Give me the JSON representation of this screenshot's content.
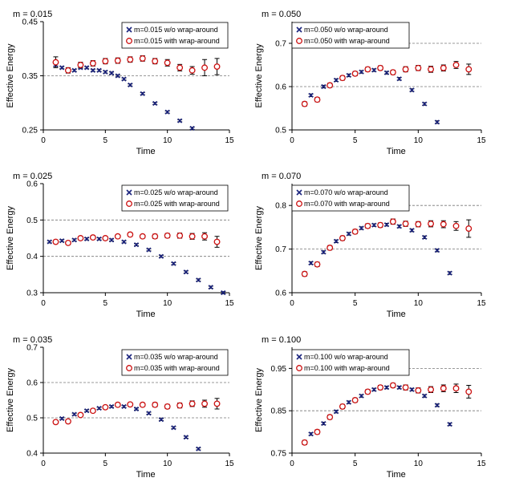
{
  "colors": {
    "without_wrap": "#1a237e",
    "with_wrap": "#cc1111",
    "error_bar": "#000000",
    "reference_line": "#777777",
    "axis": "#000000"
  },
  "chart_data": [
    {
      "type": "scatter",
      "title": "m = 0.015",
      "xlabel": "Time",
      "ylabel": "Effective Energy",
      "xlim": [
        0,
        15
      ],
      "ylim": [
        0.25,
        0.45
      ],
      "xticks": [
        "0",
        "5",
        "10",
        "15"
      ],
      "yticks": [
        "0.25",
        "0.35",
        "0.45"
      ],
      "reference_lines": [
        0.35
      ],
      "legend_position": "top-right",
      "series": [
        {
          "name": "m=0.015 w/o wrap-around",
          "marker": "x",
          "x": [
            1,
            1.5,
            2,
            2.5,
            3,
            3.5,
            4,
            4.5,
            5,
            5.5,
            6,
            6.5,
            7,
            8,
            9,
            10,
            11,
            12
          ],
          "y": [
            0.37,
            0.365,
            0.36,
            0.36,
            0.365,
            0.365,
            0.36,
            0.36,
            0.357,
            0.355,
            0.35,
            0.344,
            0.333,
            0.317,
            0.299,
            0.283,
            0.267,
            0.253
          ],
          "err": [
            0.002,
            0.002,
            0.002,
            0.002,
            0.002,
            0.002,
            0.002,
            0.002,
            0.002,
            0.002,
            0.002,
            0.002,
            0.002,
            0.002,
            0.002,
            0.002,
            0.002,
            0.002
          ]
        },
        {
          "name": "m=0.015 with wrap-around",
          "marker": "o",
          "x": [
            1,
            2,
            3,
            4,
            5,
            6,
            7,
            8,
            9,
            10,
            11,
            12,
            13,
            14
          ],
          "y": [
            0.375,
            0.36,
            0.37,
            0.373,
            0.377,
            0.378,
            0.38,
            0.382,
            0.377,
            0.374,
            0.365,
            0.36,
            0.365,
            0.367
          ],
          "err": [
            0.01,
            0.005,
            0.005,
            0.005,
            0.005,
            0.005,
            0.005,
            0.005,
            0.005,
            0.006,
            0.006,
            0.007,
            0.015,
            0.015
          ]
        }
      ]
    },
    {
      "type": "scatter",
      "title": "m = 0.050",
      "xlabel": "Time",
      "ylabel": "Effective Energy",
      "xlim": [
        0,
        15
      ],
      "ylim": [
        0.5,
        0.75
      ],
      "xticks": [
        "0",
        "5",
        "10",
        "15"
      ],
      "yticks": [
        "0.5",
        "0.6",
        "0.7"
      ],
      "reference_lines": [
        0.6,
        0.7
      ],
      "legend_position": "top-left",
      "series": [
        {
          "name": "m=0.050 w/o wrap-around",
          "marker": "x",
          "x": [
            1.5,
            2.5,
            3.5,
            4.5,
            5.5,
            6.5,
            7.5,
            8.5,
            9.5,
            10.5,
            11.5
          ],
          "y": [
            0.58,
            0.6,
            0.615,
            0.626,
            0.634,
            0.638,
            0.632,
            0.618,
            0.592,
            0.56,
            0.518
          ],
          "err": [
            0.003,
            0.003,
            0.003,
            0.003,
            0.003,
            0.003,
            0.003,
            0.003,
            0.003,
            0.003,
            0.003
          ]
        },
        {
          "name": "m=0.050 with wrap-around",
          "marker": "o",
          "x": [
            1,
            2,
            3,
            4,
            5,
            6,
            7,
            8,
            9,
            10,
            11,
            12,
            13,
            14
          ],
          "y": [
            0.56,
            0.57,
            0.603,
            0.62,
            0.63,
            0.64,
            0.643,
            0.633,
            0.64,
            0.643,
            0.64,
            0.643,
            0.65,
            0.64
          ],
          "err": [
            0.005,
            0.005,
            0.005,
            0.005,
            0.005,
            0.005,
            0.005,
            0.005,
            0.006,
            0.006,
            0.007,
            0.007,
            0.008,
            0.012
          ]
        }
      ]
    },
    {
      "type": "scatter",
      "title": "m = 0.025",
      "xlabel": "Time",
      "ylabel": "Effective Energy",
      "xlim": [
        0,
        15
      ],
      "ylim": [
        0.3,
        0.6
      ],
      "xticks": [
        "0",
        "5",
        "10",
        "15"
      ],
      "yticks": [
        "0.3",
        "0.4",
        "0.5",
        "0.6"
      ],
      "reference_lines": [
        0.4,
        0.5
      ],
      "legend_position": "top-right",
      "series": [
        {
          "name": "m=0.025 w/o wrap-around",
          "marker": "x",
          "x": [
            0.5,
            1.5,
            2.5,
            3.5,
            4.5,
            5.5,
            6.5,
            7.5,
            8.5,
            9.5,
            10.5,
            11.5,
            12.5,
            13.5,
            14.5
          ],
          "y": [
            0.44,
            0.443,
            0.445,
            0.448,
            0.448,
            0.445,
            0.44,
            0.432,
            0.418,
            0.4,
            0.38,
            0.357,
            0.335,
            0.315,
            0.3
          ],
          "err": [
            0.003,
            0.003,
            0.003,
            0.003,
            0.003,
            0.003,
            0.003,
            0.003,
            0.003,
            0.003,
            0.003,
            0.003,
            0.003,
            0.003,
            0.003
          ]
        },
        {
          "name": "m=0.025 with wrap-around",
          "marker": "o",
          "x": [
            1,
            2,
            3,
            4,
            5,
            6,
            7,
            8,
            9,
            10,
            11,
            12,
            13,
            14
          ],
          "y": [
            0.44,
            0.437,
            0.45,
            0.452,
            0.45,
            0.455,
            0.46,
            0.455,
            0.455,
            0.457,
            0.457,
            0.455,
            0.455,
            0.44
          ],
          "err": [
            0.005,
            0.005,
            0.005,
            0.005,
            0.005,
            0.005,
            0.005,
            0.005,
            0.006,
            0.006,
            0.007,
            0.008,
            0.01,
            0.015
          ]
        }
      ]
    },
    {
      "type": "scatter",
      "title": "m = 0.070",
      "xlabel": "Time",
      "ylabel": "Effective Energy",
      "xlim": [
        0,
        15
      ],
      "ylim": [
        0.6,
        0.85
      ],
      "xticks": [
        "0",
        "5",
        "10",
        "15"
      ],
      "yticks": [
        "0.6",
        "0.7",
        "0.8"
      ],
      "reference_lines": [
        0.7,
        0.8
      ],
      "legend_position": "top-left",
      "series": [
        {
          "name": "m=0.070 w/o wrap-around",
          "marker": "x",
          "x": [
            1.5,
            2.5,
            3.5,
            4.5,
            5.5,
            6.5,
            7.5,
            8.5,
            9.5,
            10.5,
            11.5,
            12.5
          ],
          "y": [
            0.668,
            0.693,
            0.718,
            0.735,
            0.748,
            0.755,
            0.756,
            0.752,
            0.743,
            0.727,
            0.697,
            0.645
          ],
          "err": [
            0.003,
            0.003,
            0.003,
            0.003,
            0.003,
            0.003,
            0.003,
            0.003,
            0.003,
            0.003,
            0.003,
            0.003
          ]
        },
        {
          "name": "m=0.070 with wrap-around",
          "marker": "o",
          "x": [
            1,
            2,
            3,
            4,
            5,
            6,
            7,
            8,
            9,
            10,
            11,
            12,
            13,
            14
          ],
          "y": [
            0.643,
            0.665,
            0.703,
            0.725,
            0.74,
            0.753,
            0.755,
            0.763,
            0.758,
            0.757,
            0.758,
            0.757,
            0.753,
            0.747
          ],
          "err": [
            0.005,
            0.005,
            0.005,
            0.005,
            0.005,
            0.005,
            0.005,
            0.006,
            0.006,
            0.006,
            0.007,
            0.008,
            0.01,
            0.02
          ]
        }
      ]
    },
    {
      "type": "scatter",
      "title": "m = 0.035",
      "xlabel": "Time",
      "ylabel": "Effective Energy",
      "xlim": [
        0,
        15
      ],
      "ylim": [
        0.4,
        0.7
      ],
      "xticks": [
        "0",
        "5",
        "10",
        "15"
      ],
      "yticks": [
        "0.4",
        "0.5",
        "0.6",
        "0.7"
      ],
      "reference_lines": [
        0.5,
        0.6
      ],
      "legend_position": "top-right",
      "series": [
        {
          "name": "m=0.035 w/o wrap-around",
          "marker": "x",
          "x": [
            1.5,
            2.5,
            3.5,
            4.5,
            5.5,
            6.5,
            7.5,
            8.5,
            9.5,
            10.5,
            11.5,
            12.5
          ],
          "y": [
            0.498,
            0.51,
            0.52,
            0.527,
            0.532,
            0.532,
            0.525,
            0.513,
            0.495,
            0.472,
            0.445,
            0.412
          ],
          "err": [
            0.003,
            0.003,
            0.003,
            0.003,
            0.003,
            0.003,
            0.003,
            0.003,
            0.003,
            0.003,
            0.003,
            0.003
          ]
        },
        {
          "name": "m=0.035 with wrap-around",
          "marker": "o",
          "x": [
            1,
            2,
            3,
            4,
            5,
            6,
            7,
            8,
            9,
            10,
            11,
            12,
            13,
            14
          ],
          "y": [
            0.488,
            0.49,
            0.508,
            0.52,
            0.53,
            0.537,
            0.538,
            0.537,
            0.537,
            0.532,
            0.535,
            0.54,
            0.54,
            0.54
          ],
          "err": [
            0.005,
            0.005,
            0.005,
            0.005,
            0.005,
            0.005,
            0.005,
            0.005,
            0.006,
            0.006,
            0.007,
            0.008,
            0.01,
            0.015
          ]
        }
      ]
    },
    {
      "type": "scatter",
      "title": "m = 0.100",
      "xlabel": "Time",
      "ylabel": "Effective Energy",
      "xlim": [
        0,
        15
      ],
      "ylim": [
        0.75,
        1.0
      ],
      "xticks": [
        "0",
        "5",
        "10",
        "15"
      ],
      "yticks": [
        "0.75",
        "0.85",
        "0.95"
      ],
      "reference_lines": [
        0.85,
        0.95
      ],
      "legend_position": "top-left",
      "series": [
        {
          "name": "m=0.100 w/o wrap-around",
          "marker": "x",
          "x": [
            1.5,
            2.5,
            3.5,
            4.5,
            5.5,
            6.5,
            7.5,
            8.5,
            9.5,
            10.5,
            11.5,
            12.5
          ],
          "y": [
            0.795,
            0.82,
            0.848,
            0.87,
            0.885,
            0.9,
            0.905,
            0.905,
            0.9,
            0.885,
            0.863,
            0.818
          ],
          "err": [
            0.003,
            0.003,
            0.003,
            0.003,
            0.003,
            0.003,
            0.003,
            0.003,
            0.003,
            0.003,
            0.003,
            0.003
          ]
        },
        {
          "name": "m=0.100 with wrap-around",
          "marker": "o",
          "x": [
            1,
            2,
            3,
            4,
            5,
            6,
            7,
            8,
            9,
            10,
            11,
            12,
            13,
            14
          ],
          "y": [
            0.775,
            0.8,
            0.835,
            0.86,
            0.875,
            0.895,
            0.905,
            0.91,
            0.905,
            0.898,
            0.9,
            0.903,
            0.903,
            0.895
          ],
          "err": [
            0.005,
            0.005,
            0.005,
            0.005,
            0.005,
            0.005,
            0.005,
            0.005,
            0.006,
            0.006,
            0.007,
            0.008,
            0.01,
            0.015
          ]
        }
      ]
    }
  ]
}
